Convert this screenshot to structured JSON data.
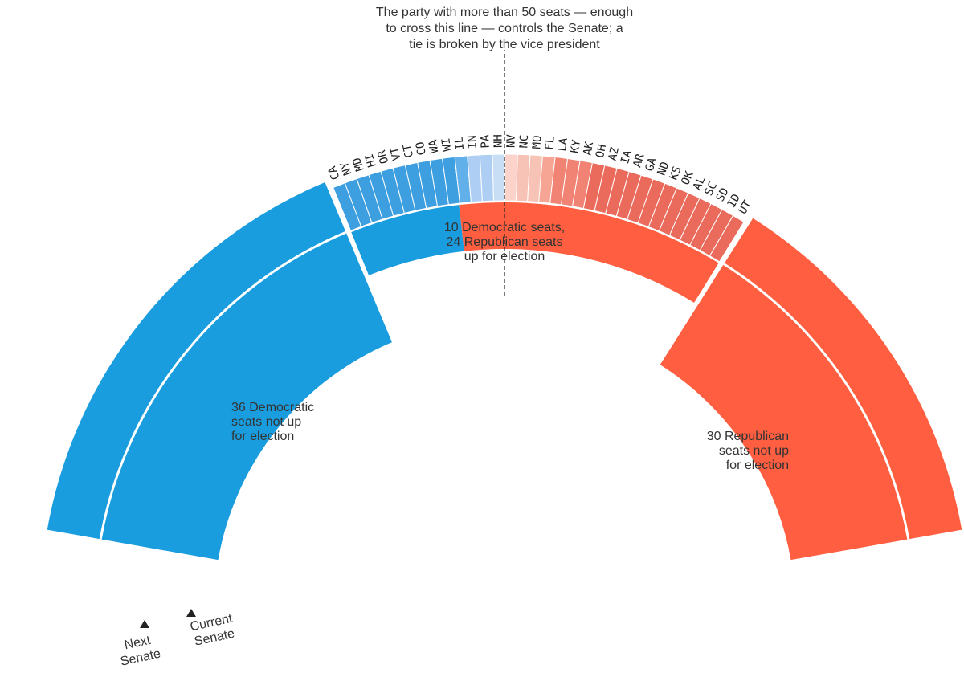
{
  "chart_data": {
    "type": "semicircle-seat-chart",
    "colors": {
      "dem": "#1a9ddf",
      "rep": "#ff5f40",
      "dem_up_shades": [
        "#3d9ee0",
        "#62b0ea",
        "#aecff3",
        "#c8def5"
      ],
      "rep_up_shades": [
        "#fbd3cb",
        "#f8c3b7",
        "#f6a494",
        "#f08373",
        "#ea6b5b"
      ],
      "divider": "#222222"
    },
    "current_senate": {
      "label": "Current\nSenate",
      "dem_not_up": 36,
      "dem_up": 10,
      "rep_up": 24,
      "rep_not_up": 30
    },
    "next_senate": {
      "label": "Next\nSenate",
      "dem_not_up": 36,
      "rep_not_up": 30
    },
    "states_up": [
      {
        "state": "CA",
        "lean": "D",
        "shade": 0
      },
      {
        "state": "NY",
        "lean": "D",
        "shade": 0
      },
      {
        "state": "MD",
        "lean": "D",
        "shade": 0
      },
      {
        "state": "HI",
        "lean": "D",
        "shade": 0
      },
      {
        "state": "OR",
        "lean": "D",
        "shade": 0
      },
      {
        "state": "VT",
        "lean": "D",
        "shade": 0
      },
      {
        "state": "CT",
        "lean": "D",
        "shade": 0
      },
      {
        "state": "CO",
        "lean": "D",
        "shade": 0
      },
      {
        "state": "WA",
        "lean": "D",
        "shade": 0
      },
      {
        "state": "WI",
        "lean": "D",
        "shade": 0
      },
      {
        "state": "IL",
        "lean": "D",
        "shade": 1
      },
      {
        "state": "IN",
        "lean": "D",
        "shade": 2
      },
      {
        "state": "PA",
        "lean": "D",
        "shade": 2
      },
      {
        "state": "NH",
        "lean": "D",
        "shade": 3
      },
      {
        "state": "NV",
        "lean": "R",
        "shade": 0
      },
      {
        "state": "NC",
        "lean": "R",
        "shade": 1
      },
      {
        "state": "MO",
        "lean": "R",
        "shade": 1
      },
      {
        "state": "FL",
        "lean": "R",
        "shade": 2
      },
      {
        "state": "LA",
        "lean": "R",
        "shade": 3
      },
      {
        "state": "KY",
        "lean": "R",
        "shade": 3
      },
      {
        "state": "AK",
        "lean": "R",
        "shade": 3
      },
      {
        "state": "OH",
        "lean": "R",
        "shade": 4
      },
      {
        "state": "AZ",
        "lean": "R",
        "shade": 4
      },
      {
        "state": "IA",
        "lean": "R",
        "shade": 4
      },
      {
        "state": "AR",
        "lean": "R",
        "shade": 4
      },
      {
        "state": "GA",
        "lean": "R",
        "shade": 4
      },
      {
        "state": "ND",
        "lean": "R",
        "shade": 4
      },
      {
        "state": "KS",
        "lean": "R",
        "shade": 4
      },
      {
        "state": "OK",
        "lean": "R",
        "shade": 4
      },
      {
        "state": "AL",
        "lean": "R",
        "shade": 4
      },
      {
        "state": "SC",
        "lean": "R",
        "shade": 4
      },
      {
        "state": "SD",
        "lean": "R",
        "shade": 4
      },
      {
        "state": "ID",
        "lean": "R",
        "shade": 4
      },
      {
        "state": "UT",
        "lean": "R",
        "shade": 4
      }
    ],
    "majority_line": 50,
    "annotations": {
      "majority_note": "The party with more than 50 seats — enough\nto cross this line — controls the Senate; a\ntie is broken by the vice president",
      "up_for_election": "10 Democratic seats,\n24 Republican seats\nup for election",
      "dem_not_up": "36 Democratic\nseats not up\nfor election",
      "rep_not_up": "30 Republican\nseats not up\nfor election"
    }
  }
}
